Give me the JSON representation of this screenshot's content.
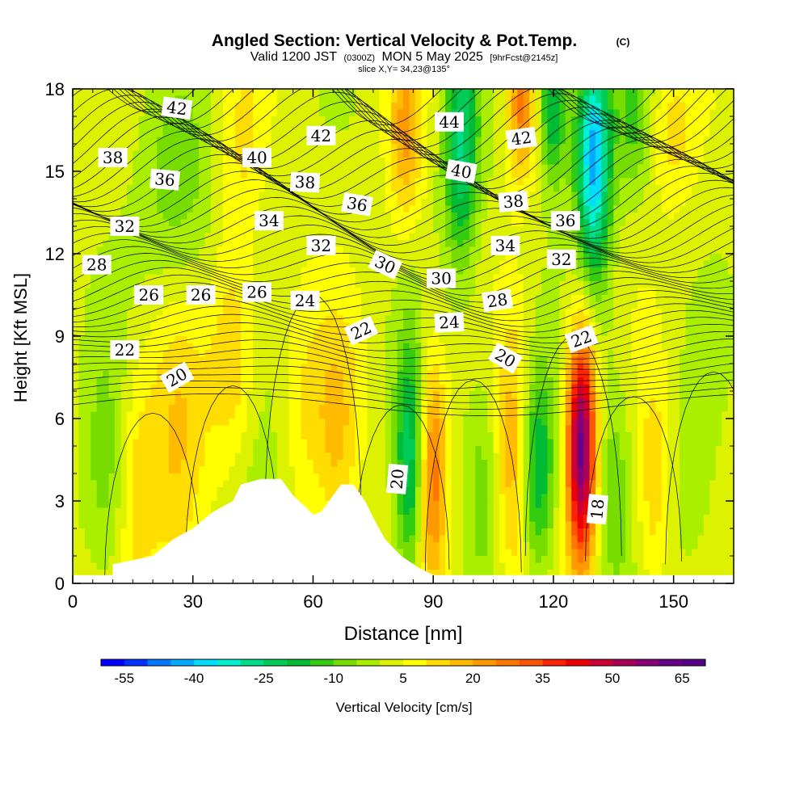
{
  "header": {
    "title": "Angled Section: Vertical Velocity & Pot.Temp.",
    "title_mark": "(C)",
    "subtitle_a": "Valid 1200 JST",
    "subtitle_b": "(0300Z)",
    "subtitle_c": "MON 5 May 2025",
    "subtitle_d": "[9hrFcst@2145z]",
    "slice": "slice X,Y= 34,23@135°"
  },
  "chart_data": {
    "type": "heatmap",
    "title": "Angled Section: Vertical Velocity & Pot.Temp.",
    "xlabel": "Distance [nm]",
    "ylabel": "Height [Kft MSL]",
    "xlim": [
      0,
      165
    ],
    "ylim": [
      0,
      18
    ],
    "xticks": [
      0,
      30,
      60,
      90,
      120,
      150
    ],
    "xtick_labels": [
      "0",
      "30",
      "60",
      "90",
      "120",
      "150"
    ],
    "yticks": [
      0,
      3,
      6,
      9,
      12,
      15,
      18
    ],
    "ytick_labels": [
      "0",
      "3",
      "6",
      "9",
      "12",
      "15",
      "18"
    ],
    "colorbar": {
      "label": "Vertical Velocity [cm/s]",
      "range": [
        -60,
        70
      ],
      "step": 5,
      "tick_values": [
        -55,
        -40,
        -25,
        -10,
        5,
        20,
        35,
        50,
        65
      ],
      "tick_labels": [
        "-55",
        "-40",
        "-25",
        "-10",
        "5",
        "20",
        "35",
        "50",
        "65"
      ],
      "colors": [
        "#0000ff",
        "#0033ff",
        "#0077ff",
        "#00aaff",
        "#00ddff",
        "#00f0d0",
        "#00dd88",
        "#00cc55",
        "#00bb33",
        "#33cc11",
        "#77dd00",
        "#aaee00",
        "#ddf200",
        "#ffff00",
        "#ffdd00",
        "#ffbb00",
        "#ff9900",
        "#ff7700",
        "#ff5500",
        "#ff2200",
        "#ee0000",
        "#cc0033",
        "#aa0055",
        "#880077",
        "#660088",
        "#550088"
      ]
    },
    "terrain": [
      [
        10,
        0.7
      ],
      [
        20,
        1.0
      ],
      [
        25,
        1.6
      ],
      [
        30,
        2.0
      ],
      [
        35,
        2.6
      ],
      [
        40,
        3.0
      ],
      [
        42,
        3.6
      ],
      [
        47,
        3.8
      ],
      [
        52,
        3.8
      ],
      [
        55,
        3.2
      ],
      [
        58,
        2.8
      ],
      [
        60,
        2.5
      ],
      [
        62,
        2.6
      ],
      [
        64,
        3.0
      ],
      [
        67,
        3.6
      ],
      [
        70,
        3.6
      ],
      [
        73,
        3.0
      ],
      [
        75,
        2.4
      ],
      [
        78,
        1.6
      ],
      [
        82,
        1.0
      ],
      [
        86,
        0.6
      ],
      [
        90,
        0.3
      ]
    ],
    "wcells": [
      {
        "x": 26,
        "y": 4.5,
        "sx": 6,
        "sy": 4,
        "w": 14
      },
      {
        "x": 40,
        "y": 8.0,
        "sx": 4,
        "sy": 3,
        "w": 12
      },
      {
        "x": 47,
        "y": 2.0,
        "sx": 7,
        "sy": 3,
        "w": -8
      },
      {
        "x": 57,
        "y": 6.0,
        "sx": 4,
        "sy": 3.5,
        "w": 8
      },
      {
        "x": 66,
        "y": 5.5,
        "sx": 4,
        "sy": 3,
        "w": 14
      },
      {
        "x": 84,
        "y": 4.5,
        "sx": 2.5,
        "sy": 3,
        "w": -26
      },
      {
        "x": 90,
        "y": 4.0,
        "sx": 2.5,
        "sy": 3,
        "w": 25
      },
      {
        "x": 102,
        "y": 4.0,
        "sx": 3,
        "sy": 3,
        "w": -8
      },
      {
        "x": 110,
        "y": 4.5,
        "sx": 3,
        "sy": 3.5,
        "w": 18
      },
      {
        "x": 116,
        "y": 4.2,
        "sx": 3,
        "sy": 2.5,
        "w": -24
      },
      {
        "x": 127,
        "y": 5.0,
        "sx": 2.5,
        "sy": 3,
        "w": 60
      },
      {
        "x": 135,
        "y": 3.5,
        "sx": 3,
        "sy": 3,
        "w": -10
      },
      {
        "x": 145,
        "y": 3.5,
        "sx": 3,
        "sy": 3,
        "w": 12
      },
      {
        "x": 155,
        "y": 4.0,
        "sx": 4,
        "sy": 3,
        "w": -6
      },
      {
        "x": 8,
        "y": 4.0,
        "sx": 4,
        "sy": 3,
        "w": -10
      },
      {
        "x": 16,
        "y": 3.5,
        "sx": 3,
        "sy": 3,
        "w": 8
      },
      {
        "x": 130,
        "y": 15.5,
        "sx": 3,
        "sy": 3,
        "w": -45
      },
      {
        "x": 120,
        "y": 17.5,
        "sx": 2.5,
        "sy": 2,
        "w": -25
      },
      {
        "x": 112,
        "y": 17.5,
        "sx": 2.5,
        "sy": 2,
        "w": 25
      },
      {
        "x": 97,
        "y": 16.0,
        "sx": 3,
        "sy": 3,
        "w": -28
      },
      {
        "x": 83,
        "y": 16.5,
        "sx": 3,
        "sy": 2.5,
        "w": 18
      },
      {
        "x": 140,
        "y": 17.0,
        "sx": 3,
        "sy": 2,
        "w": -12
      },
      {
        "x": 150,
        "y": 16.5,
        "sx": 4,
        "sy": 2,
        "w": 10
      },
      {
        "x": 26,
        "y": 14.0,
        "sx": 7,
        "sy": 3,
        "w": -10
      },
      {
        "x": 42,
        "y": 16.0,
        "sx": 4,
        "sy": 3,
        "w": 8
      }
    ],
    "theta_labels": [
      {
        "x": 26,
        "y": 17.3,
        "v": "42",
        "rot": 8
      },
      {
        "x": 10,
        "y": 15.5,
        "v": "38",
        "rot": 0
      },
      {
        "x": 23,
        "y": 14.7,
        "v": "36",
        "rot": 5
      },
      {
        "x": 13,
        "y": 13.0,
        "v": "32",
        "rot": 0
      },
      {
        "x": 6,
        "y": 11.6,
        "v": "28",
        "rot": 0
      },
      {
        "x": 19,
        "y": 10.5,
        "v": "26",
        "rot": 0
      },
      {
        "x": 32,
        "y": 10.5,
        "v": "26",
        "rot": 0
      },
      {
        "x": 46,
        "y": 10.6,
        "v": "26",
        "rot": 0
      },
      {
        "x": 13,
        "y": 8.5,
        "v": "22",
        "rot": 0
      },
      {
        "x": 26,
        "y": 7.5,
        "v": "20",
        "rot": -30
      },
      {
        "x": 46,
        "y": 15.5,
        "v": "40",
        "rot": 0
      },
      {
        "x": 62,
        "y": 16.3,
        "v": "42",
        "rot": 0
      },
      {
        "x": 58,
        "y": 14.6,
        "v": "38",
        "rot": 3
      },
      {
        "x": 49,
        "y": 13.2,
        "v": "34",
        "rot": 0
      },
      {
        "x": 62,
        "y": 12.3,
        "v": "32",
        "rot": 0
      },
      {
        "x": 71,
        "y": 13.8,
        "v": "36",
        "rot": 10
      },
      {
        "x": 58,
        "y": 10.3,
        "v": "24",
        "rot": 0
      },
      {
        "x": 78,
        "y": 11.6,
        "v": "30",
        "rot": 25
      },
      {
        "x": 72,
        "y": 9.2,
        "v": "22",
        "rot": -25
      },
      {
        "x": 94,
        "y": 16.8,
        "v": "44",
        "rot": 0
      },
      {
        "x": 97,
        "y": 15.0,
        "v": "40",
        "rot": 10
      },
      {
        "x": 112,
        "y": 16.2,
        "v": "42",
        "rot": -8
      },
      {
        "x": 110,
        "y": 13.9,
        "v": "38",
        "rot": -5
      },
      {
        "x": 92,
        "y": 11.1,
        "v": "30",
        "rot": 0
      },
      {
        "x": 94,
        "y": 9.5,
        "v": "24",
        "rot": -3
      },
      {
        "x": 108,
        "y": 12.3,
        "v": "34",
        "rot": 0
      },
      {
        "x": 106,
        "y": 10.3,
        "v": "28",
        "rot": -8
      },
      {
        "x": 108,
        "y": 8.2,
        "v": "20",
        "rot": 30
      },
      {
        "x": 123,
        "y": 13.2,
        "v": "36",
        "rot": 0
      },
      {
        "x": 122,
        "y": 11.8,
        "v": "32",
        "rot": 0
      },
      {
        "x": 127,
        "y": 8.9,
        "v": "22",
        "rot": -20
      },
      {
        "x": 81,
        "y": 3.8,
        "v": "20",
        "rot": -85
      },
      {
        "x": 131,
        "y": 2.7,
        "v": "18",
        "rot": -85
      }
    ]
  }
}
